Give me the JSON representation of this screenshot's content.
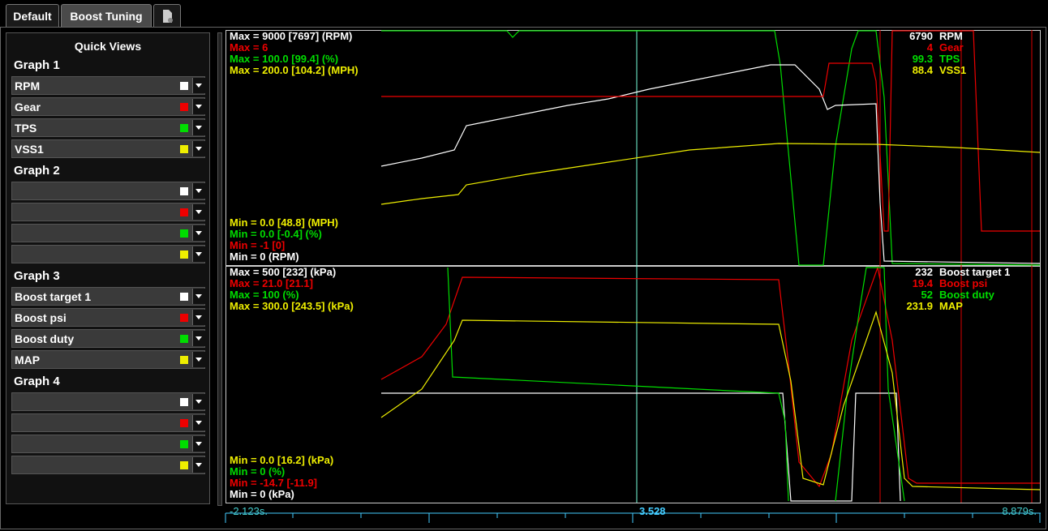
{
  "tabs": [
    "Default",
    "Boost Tuning"
  ],
  "sidebar": {
    "title": "Quick Views",
    "groups": [
      {
        "name": "Graph 1",
        "items": [
          "RPM",
          "Gear",
          "TPS",
          "VSS1"
        ]
      },
      {
        "name": "Graph 2"
      },
      {
        "name": "Graph 3",
        "items": [
          "Boost target 1",
          "Boost psi",
          "Boost duty",
          "MAP"
        ]
      },
      {
        "name": "Graph 4"
      }
    ]
  },
  "graphs": [
    {
      "max": [
        "Max = 9000 [7697] (RPM)",
        "Max = 6",
        "Max = 100.0 [99.4] (%)",
        "Max = 200.0 [104.2] (MPH)"
      ],
      "min": [
        "Min = 0.0 [48.8] (MPH)",
        "Min = 0.0 [-0.4] (%)",
        "Min = -1 [0]",
        "Min = 0 (RPM)"
      ],
      "current": [
        {
          "value": 6790,
          "name": "RPM"
        },
        {
          "value": 4,
          "name": "Gear"
        },
        {
          "value": 99.3,
          "name": "TPS"
        },
        {
          "value": 88.4,
          "name": "VSS1"
        }
      ]
    },
    {
      "max": [
        "Max = 500 [232] (kPa)",
        "Max = 21.0 [21.1]",
        "Max = 100 (%)",
        "Max = 300.0 [243.5] (kPa)"
      ],
      "min": [
        "Min = 0.0 [16.2] (kPa)",
        "Min = 0 (%)",
        "Min = -14.7 [-11.9]",
        "Min = 0 (kPa)"
      ],
      "current": [
        {
          "value": 232,
          "name": "Boost target 1"
        },
        {
          "value": 19.4,
          "name": "Boost psi"
        },
        {
          "value": 52,
          "name": "Boost duty"
        },
        {
          "value": 231.9,
          "name": "MAP"
        }
      ]
    }
  ],
  "timeline": {
    "start": "-2.123s.",
    "cursor": 3.528,
    "end": "8.879s."
  }
}
